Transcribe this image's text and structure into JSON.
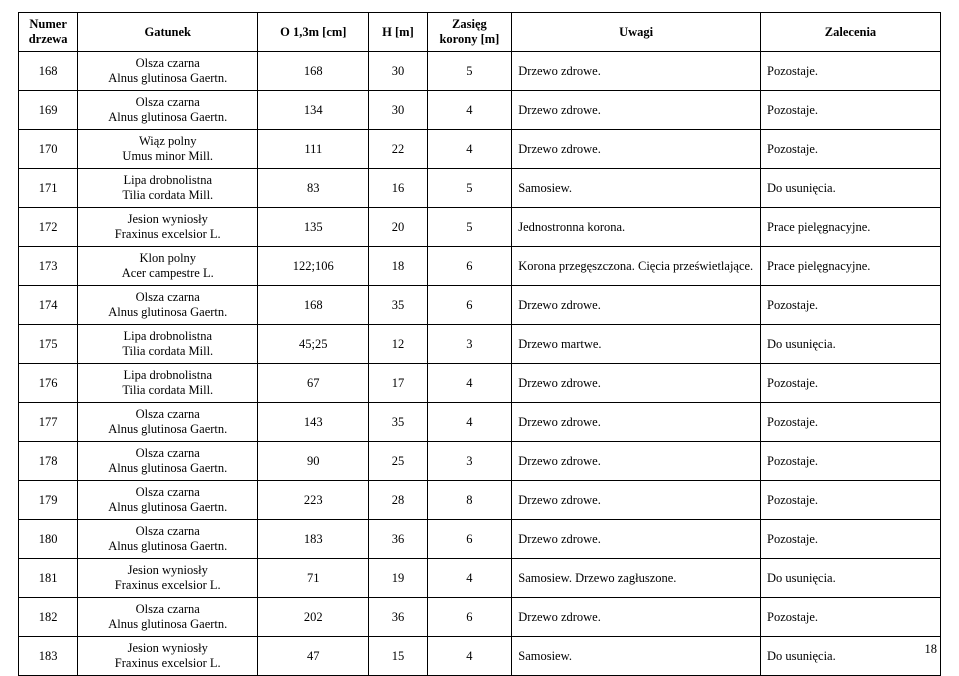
{
  "header": {
    "col_num": "Numer\ndrzewa",
    "col_gat": "Gatunek",
    "col_o": "O 1,3m   [cm]",
    "col_h": "H [m]",
    "col_zas": "Zasięg\nkorony [m]",
    "col_uw": "Uwagi",
    "col_zal": "Zalecenia"
  },
  "rows": [
    {
      "num": "168",
      "gat_pl": "Olsza czarna",
      "gat_lat": "Alnus glutinosa Gaertn.",
      "o": "168",
      "h": "30",
      "zas": "5",
      "uw": "Drzewo zdrowe.",
      "zal": "Pozostaje."
    },
    {
      "num": "169",
      "gat_pl": "Olsza czarna",
      "gat_lat": "Alnus glutinosa Gaertn.",
      "o": "134",
      "h": "30",
      "zas": "4",
      "uw": "Drzewo zdrowe.",
      "zal": "Pozostaje."
    },
    {
      "num": "170",
      "gat_pl": "Wiąz polny",
      "gat_lat": "Umus minor Mill.",
      "o": "111",
      "h": "22",
      "zas": "4",
      "uw": "Drzewo zdrowe.",
      "zal": "Pozostaje."
    },
    {
      "num": "171",
      "gat_pl": "Lipa drobnolistna",
      "gat_lat": "Tilia cordata Mill.",
      "o": "83",
      "h": "16",
      "zas": "5",
      "uw": "Samosiew.",
      "zal": "Do usunięcia."
    },
    {
      "num": "172",
      "gat_pl": "Jesion wyniosły",
      "gat_lat": "Fraxinus excelsior L.",
      "o": "135",
      "h": "20",
      "zas": "5",
      "uw": "Jednostronna korona.",
      "zal": "Prace pielęgnacyjne."
    },
    {
      "num": "173",
      "gat_pl": "Klon polny",
      "gat_lat": "Acer campestre L.",
      "o": "122;106",
      "h": "18",
      "zas": "6",
      "uw": "Korona przegęszczona. Cięcia prześwietlające.",
      "zal": "Prace pielęgnacyjne."
    },
    {
      "num": "174",
      "gat_pl": "Olsza czarna",
      "gat_lat": "Alnus glutinosa Gaertn.",
      "o": "168",
      "h": "35",
      "zas": "6",
      "uw": "Drzewo zdrowe.",
      "zal": "Pozostaje."
    },
    {
      "num": "175",
      "gat_pl": "Lipa drobnolistna",
      "gat_lat": "Tilia cordata Mill.",
      "o": "45;25",
      "h": "12",
      "zas": "3",
      "uw": "Drzewo martwe.",
      "zal": "Do usunięcia."
    },
    {
      "num": "176",
      "gat_pl": "Lipa drobnolistna",
      "gat_lat": "Tilia cordata Mill.",
      "o": "67",
      "h": "17",
      "zas": "4",
      "uw": "Drzewo zdrowe.",
      "zal": "Pozostaje."
    },
    {
      "num": "177",
      "gat_pl": "Olsza czarna",
      "gat_lat": "Alnus glutinosa Gaertn.",
      "o": "143",
      "h": "35",
      "zas": "4",
      "uw": "Drzewo zdrowe.",
      "zal": "Pozostaje."
    },
    {
      "num": "178",
      "gat_pl": "Olsza czarna",
      "gat_lat": "Alnus glutinosa Gaertn.",
      "o": "90",
      "h": "25",
      "zas": "3",
      "uw": "Drzewo zdrowe.",
      "zal": "Pozostaje."
    },
    {
      "num": "179",
      "gat_pl": "Olsza czarna",
      "gat_lat": "Alnus glutinosa Gaertn.",
      "o": "223",
      "h": "28",
      "zas": "8",
      "uw": "Drzewo zdrowe.",
      "zal": "Pozostaje."
    },
    {
      "num": "180",
      "gat_pl": "Olsza czarna",
      "gat_lat": "Alnus glutinosa Gaertn.",
      "o": "183",
      "h": "36",
      "zas": "6",
      "uw": "Drzewo zdrowe.",
      "zal": "Pozostaje."
    },
    {
      "num": "181",
      "gat_pl": "Jesion wyniosły",
      "gat_lat": "Fraxinus excelsior L.",
      "o": "71",
      "h": "19",
      "zas": "4",
      "uw": "Samosiew. Drzewo zagłuszone.",
      "zal": "Do usunięcia."
    },
    {
      "num": "182",
      "gat_pl": "Olsza czarna",
      "gat_lat": "Alnus glutinosa Gaertn.",
      "o": "202",
      "h": "36",
      "zas": "6",
      "uw": "Drzewo zdrowe.",
      "zal": "Pozostaje."
    },
    {
      "num": "183",
      "gat_pl": "Jesion wyniosły",
      "gat_lat": "Fraxinus excelsior L.",
      "o": "47",
      "h": "15",
      "zas": "4",
      "uw": "Samosiew.",
      "zal": "Do usunięcia."
    }
  ],
  "page_number": "18"
}
